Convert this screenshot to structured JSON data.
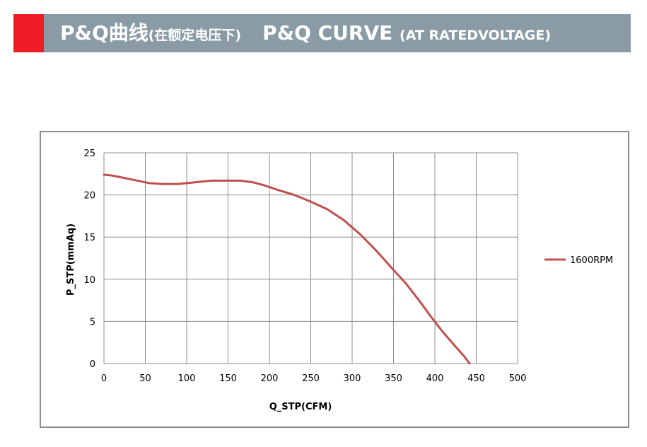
{
  "header": {
    "title_cn": "P&Q曲线",
    "title_cn_sub": "(在额定电压下)",
    "title_en": "P&Q CURVE",
    "title_en_sub": "(AT RATEDVOLTAGE)",
    "accent_color": "#ee1c25",
    "bar_color": "#8a9ba5"
  },
  "chart_data": {
    "type": "line",
    "xlabel": "Q_STP(CFM)",
    "ylabel": "P_STP(mmAq)",
    "xlim": [
      0,
      500
    ],
    "ylim": [
      0,
      25
    ],
    "xticks": [
      0,
      50,
      100,
      150,
      200,
      250,
      300,
      350,
      400,
      450,
      500
    ],
    "yticks": [
      0,
      5,
      10,
      15,
      20,
      25
    ],
    "grid": true,
    "legend": "right",
    "series": [
      {
        "name": "1600RPM",
        "color": "#c0504d",
        "x": [
          0,
          10,
          25,
          40,
          55,
          70,
          90,
          110,
          130,
          150,
          165,
          180,
          195,
          210,
          230,
          250,
          270,
          290,
          310,
          330,
          350,
          365,
          380,
          395,
          410,
          425,
          435,
          442
        ],
        "y": [
          22.4,
          22.3,
          22.0,
          21.7,
          21.4,
          21.3,
          21.3,
          21.5,
          21.7,
          21.7,
          21.7,
          21.5,
          21.1,
          20.6,
          20.0,
          19.2,
          18.3,
          17.0,
          15.3,
          13.3,
          11.1,
          9.5,
          7.6,
          5.6,
          3.7,
          2.0,
          0.9,
          0.0
        ]
      }
    ]
  }
}
